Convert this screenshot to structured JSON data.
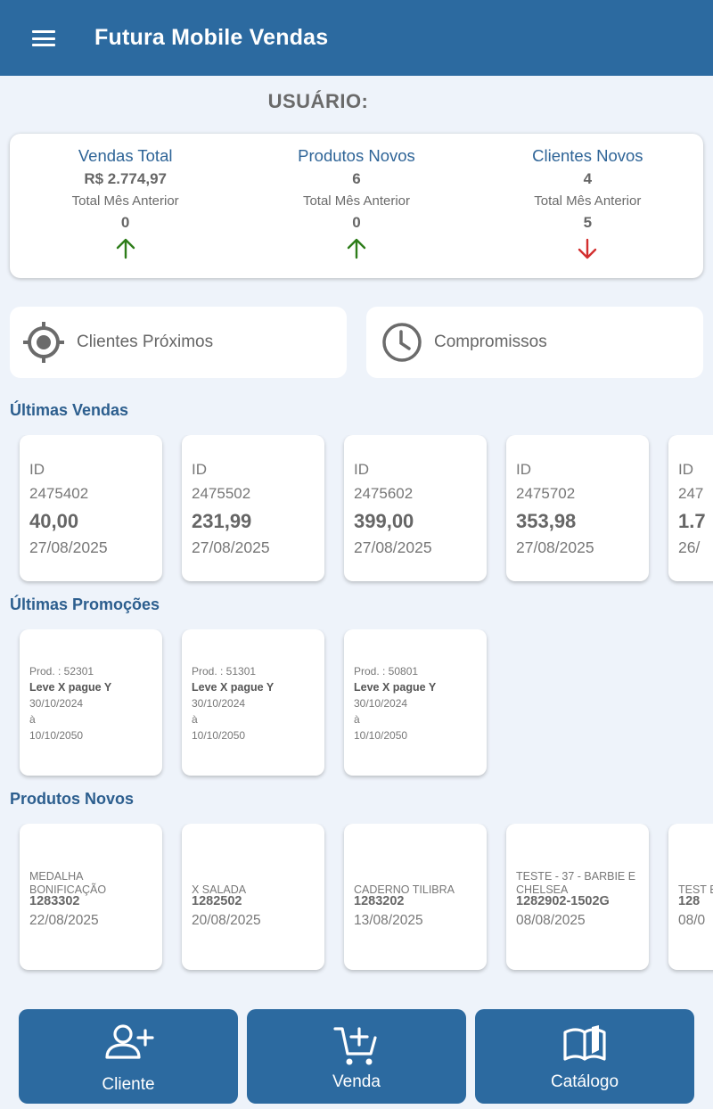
{
  "app": {
    "title": "Futura Mobile Vendas"
  },
  "user": {
    "label": "USUÁRIO:"
  },
  "stats": [
    {
      "title": "Vendas Total",
      "value": "R$ 2.774,97",
      "prev_label": "Total Mês Anterior",
      "prev_value": "0",
      "trend": "up",
      "color": "#2e7d1a"
    },
    {
      "title": "Produtos Novos",
      "value": "6",
      "prev_label": "Total Mês Anterior",
      "prev_value": "0",
      "trend": "up",
      "color": "#2e7d1a"
    },
    {
      "title": "Clientes Novos",
      "value": "4",
      "prev_label": "Total Mês Anterior",
      "prev_value": "5",
      "trend": "down",
      "color": "#d32f2f"
    }
  ],
  "quick": {
    "nearby_label": "Clientes Próximos",
    "appointments_label": "Compromissos"
  },
  "sections": {
    "sales_title": "Últimas Vendas",
    "promos_title": "Últimas Promoções",
    "products_title": "Produtos Novos"
  },
  "sales": [
    {
      "id_label": "ID",
      "id": "2475402",
      "value": "40,00",
      "date": "27/08/2025"
    },
    {
      "id_label": "ID",
      "id": "2475502",
      "value": "231,99",
      "date": "27/08/2025"
    },
    {
      "id_label": "ID",
      "id": "2475602",
      "value": "399,00",
      "date": "27/08/2025"
    },
    {
      "id_label": "ID",
      "id": "2475702",
      "value": "353,98",
      "date": "27/08/2025"
    },
    {
      "id_label": "ID",
      "id": "247",
      "value": "1.7",
      "date": "26/"
    }
  ],
  "promos": [
    {
      "prod": "Prod. : 52301",
      "name": "Leve X pague Y",
      "start": "30/10/2024",
      "sep": "à",
      "end": "10/10/2050"
    },
    {
      "prod": "Prod. : 51301",
      "name": "Leve X pague Y",
      "start": "30/10/2024",
      "sep": "à",
      "end": "10/10/2050"
    },
    {
      "prod": "Prod. : 50801",
      "name": "Leve X pague Y",
      "start": "30/10/2024",
      "sep": "à",
      "end": "10/10/2050"
    }
  ],
  "products": [
    {
      "name": "MEDALHA BONIFICAÇÃO",
      "code": "1283302",
      "date": "22/08/2025"
    },
    {
      "name": "X SALADA",
      "code": "1282502",
      "date": "20/08/2025"
    },
    {
      "name": "CADERNO TILIBRA",
      "code": "1283202",
      "date": "13/08/2025"
    },
    {
      "name": "TESTE - 37 - BARBIE E CHELSEA",
      "code": "1282902-1502G",
      "date": "08/08/2025"
    },
    {
      "name": "TEST BARE",
      "code": "128",
      "date": "08/0"
    }
  ],
  "bottom": {
    "client_label": "Cliente",
    "sale_label": "Venda",
    "catalog_label": "Catálogo"
  },
  "icons": {
    "menu": "hamburger-menu-icon",
    "nearby": "location-target-icon",
    "appointments": "clock-icon",
    "client": "add-user-icon",
    "sale": "add-to-cart-icon",
    "catalog": "open-book-icon"
  },
  "colors": {
    "primary": "#2c6aa0",
    "up": "#2e7d1a",
    "down": "#d32f2f",
    "background": "#eef3fa"
  }
}
